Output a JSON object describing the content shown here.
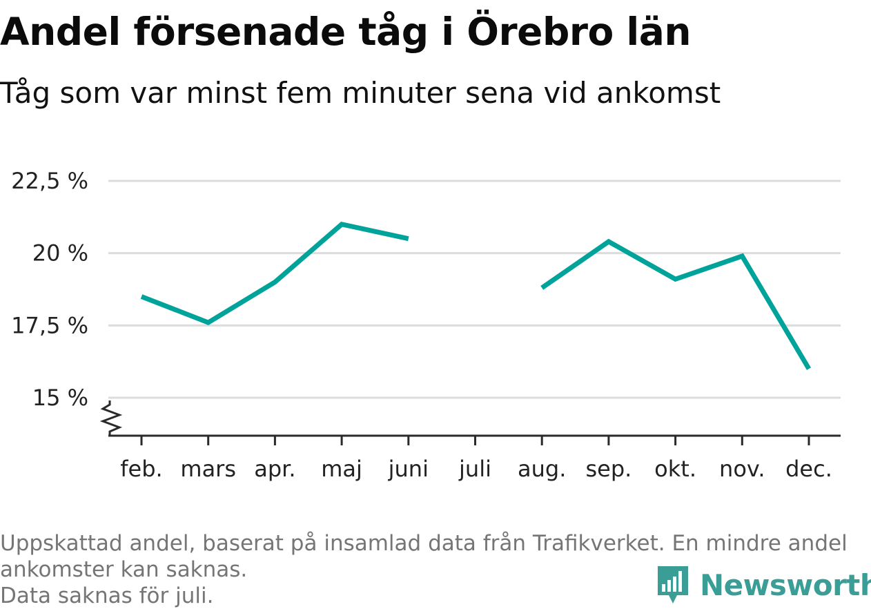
{
  "header": {
    "title": "Andel försenade tåg i Örebro län",
    "subtitle": "Tåg som var minst fem minuter sena vid ankomst"
  },
  "chart_data": {
    "type": "line",
    "categories": [
      "feb.",
      "mars",
      "apr.",
      "maj",
      "juni",
      "juli",
      "aug.",
      "sep.",
      "okt.",
      "nov.",
      "dec."
    ],
    "series": [
      {
        "values": [
          18.5,
          17.6,
          19.0,
          21.0,
          20.5,
          null,
          18.8,
          20.4,
          19.1,
          19.9,
          16.0
        ]
      }
    ],
    "y_ticks": [
      15,
      17.5,
      20,
      22.5
    ],
    "y_tick_labels": [
      "15 %",
      "17,5 %",
      "20 %",
      "22,5 %"
    ],
    "ylim": [
      13.7,
      22.5
    ],
    "grid": true,
    "axis_break": true,
    "line_color": "#00a39a"
  },
  "footer": {
    "note_line1": "Uppskattad andel, baserat på insamlad data från Trafikverket. En mindre andel",
    "note_line2": "ankomster kan saknas.",
    "note_line3": "Data saknas för juli.",
    "brand": "Newsworthy",
    "brand_color": "#3a9e96"
  }
}
